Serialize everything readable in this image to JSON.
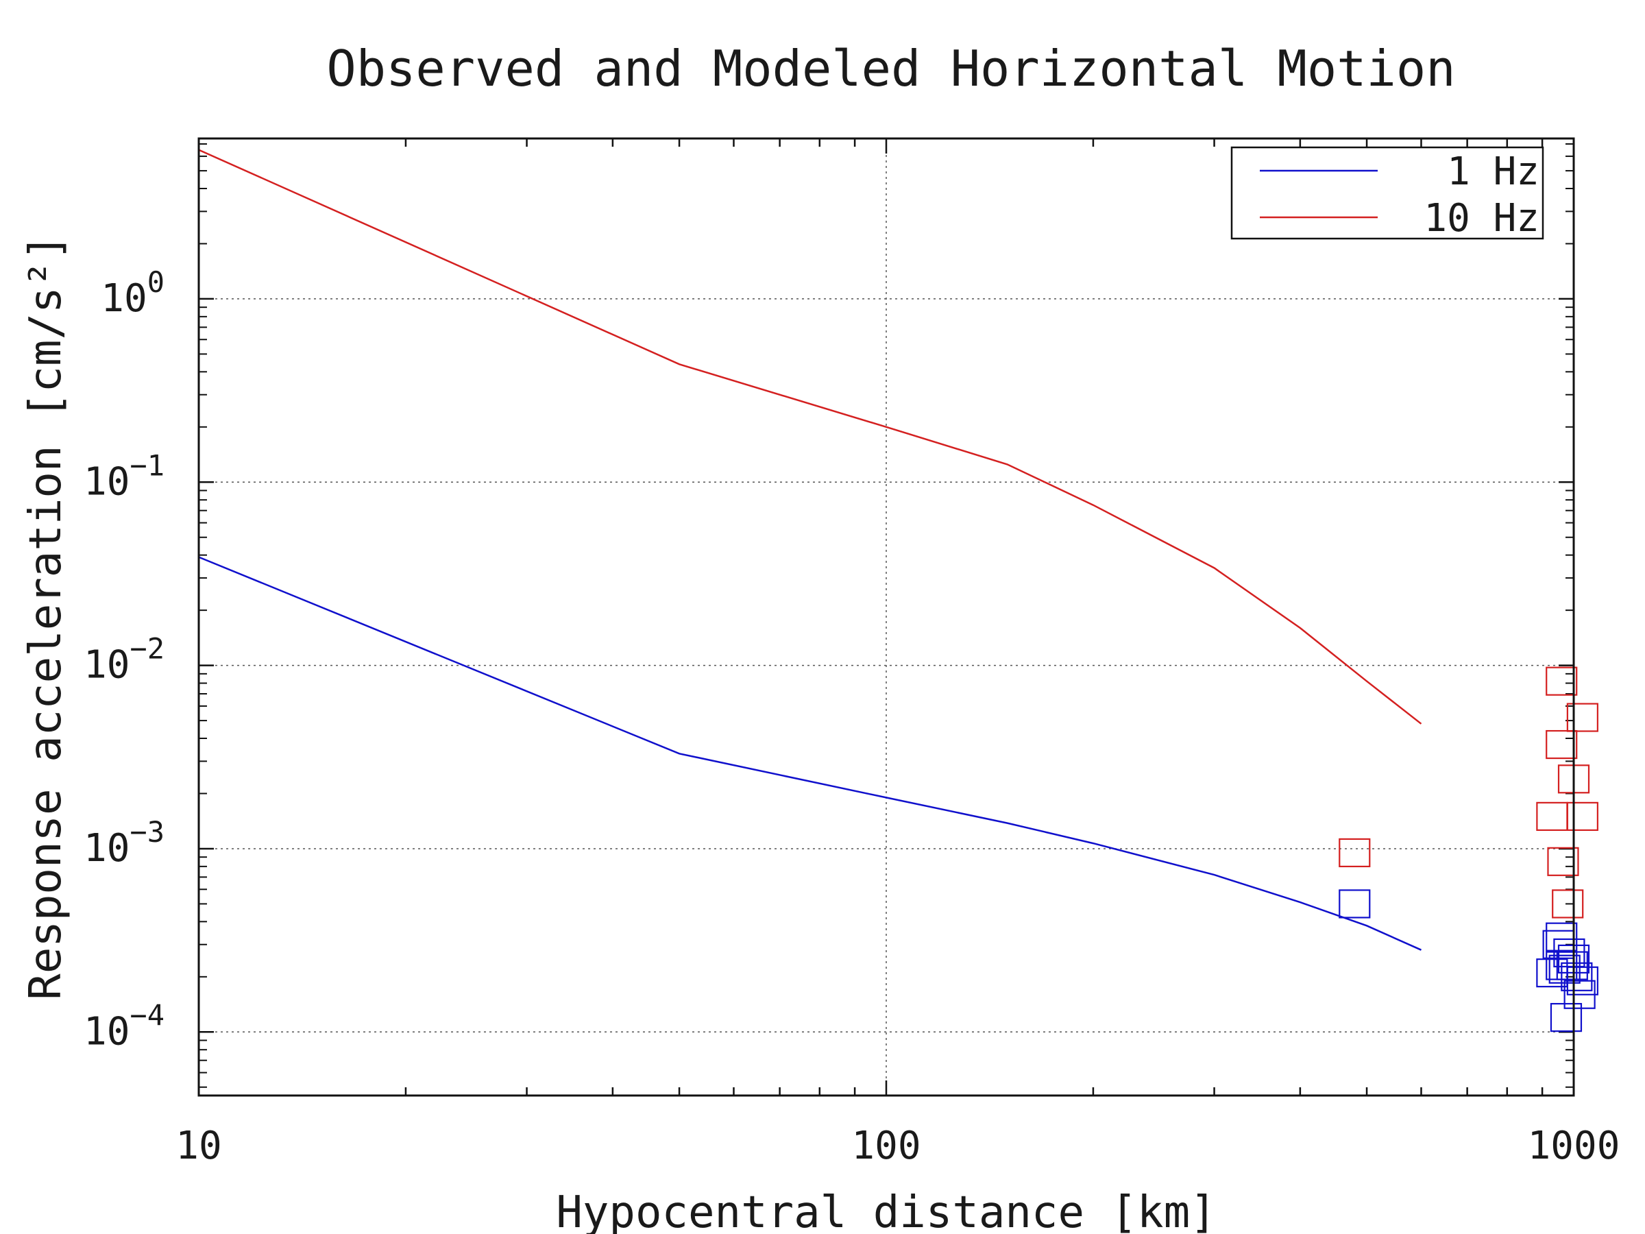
{
  "chart_data": {
    "type": "line",
    "title": "Observed and Modeled Horizontal Motion",
    "xlabel": "Hypocentral distance [km]",
    "ylabel": "Response acceleration [cm/s²]",
    "xscale": "log",
    "yscale": "log",
    "xlim": [
      10,
      1000
    ],
    "ylim": [
      4.5e-05,
      7.5
    ],
    "x_ticks": [
      {
        "value": 10,
        "label": "10"
      },
      {
        "value": 100,
        "label": "100"
      },
      {
        "value": 1000,
        "label": "1000"
      }
    ],
    "y_ticks": [
      {
        "value": 0.0001,
        "base": "10",
        "exp": "−4"
      },
      {
        "value": 0.001,
        "base": "10",
        "exp": "−3"
      },
      {
        "value": 0.01,
        "base": "10",
        "exp": "−2"
      },
      {
        "value": 0.1,
        "base": "10",
        "exp": "−1"
      },
      {
        "value": 1,
        "base": "10",
        "exp": "0"
      }
    ],
    "grid": true,
    "legend_position": "top-right",
    "series": [
      {
        "name": "1 Hz",
        "color": "#1010cc",
        "line": [
          [
            10,
            0.039
          ],
          [
            50,
            0.0033
          ],
          [
            100,
            0.0019
          ],
          [
            150,
            0.00138
          ],
          [
            200,
            0.00107
          ],
          [
            300,
            0.00072
          ],
          [
            400,
            0.00051
          ],
          [
            500,
            0.00038
          ],
          [
            600,
            0.00028
          ]
        ],
        "observed": [
          [
            480,
            0.0005
          ],
          [
            930,
            0.00021
          ],
          [
            950,
            0.0003
          ],
          [
            960,
            0.00023
          ],
          [
            960,
            0.00033
          ],
          [
            970,
            0.00022
          ],
          [
            975,
            0.00012
          ],
          [
            985,
            0.00027
          ],
          [
            995,
            0.00023
          ],
          [
            1000,
            0.00025
          ],
          [
            1010,
            0.0002
          ],
          [
            1020,
            0.00016
          ],
          [
            1030,
            0.00019
          ]
        ]
      },
      {
        "name": "10 Hz",
        "color": "#d42020",
        "line": [
          [
            10,
            6.5
          ],
          [
            50,
            0.44
          ],
          [
            100,
            0.2
          ],
          [
            150,
            0.125
          ],
          [
            200,
            0.075
          ],
          [
            300,
            0.034
          ],
          [
            400,
            0.016
          ],
          [
            500,
            0.0082
          ],
          [
            600,
            0.0048
          ]
        ],
        "observed": [
          [
            480,
            0.00095
          ],
          [
            930,
            0.0015
          ],
          [
            960,
            0.0037
          ],
          [
            960,
            0.0082
          ],
          [
            965,
            0.00085
          ],
          [
            980,
            0.0005
          ],
          [
            1000,
            0.0024
          ],
          [
            1030,
            0.0015
          ],
          [
            1030,
            0.0052
          ]
        ]
      }
    ]
  }
}
